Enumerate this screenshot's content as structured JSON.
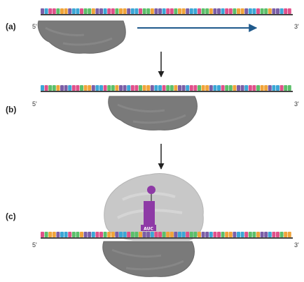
{
  "panels": [
    {
      "label": "(a)",
      "five_prime": "5'",
      "three_prime": "3'"
    },
    {
      "label": "(b)",
      "five_prime": "5'",
      "three_prime": "3'"
    },
    {
      "label": "(c)",
      "five_prime": "5'",
      "three_prime": "3'"
    }
  ],
  "trna_anticodon": "AUC",
  "colors": {
    "nucleotides": [
      "#7b5ea7",
      "#e0508a",
      "#f0a43a",
      "#3ba7d6",
      "#5bbf6a"
    ],
    "backbone": "#444444",
    "ribosome_small": "#7a7a7a",
    "ribosome_large": "#c8c8c8",
    "trna": "#8e3aa6",
    "scanning_arrow": "#1f5a8c",
    "step_arrow": "#222222"
  }
}
